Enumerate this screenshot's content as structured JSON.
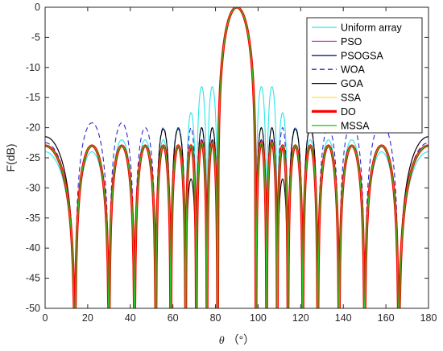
{
  "chart_data": {
    "type": "line",
    "title": "",
    "xlabel_symbol": "θ",
    "xlabel_unit": "（°）",
    "ylabel": "F(dB)",
    "xlim": [
      0,
      180
    ],
    "ylim": [
      -50,
      0
    ],
    "xticks": [
      0,
      20,
      40,
      60,
      80,
      100,
      120,
      140,
      160,
      180
    ],
    "yticks": [
      0,
      -5,
      -10,
      -15,
      -20,
      -25,
      -30,
      -35,
      -40,
      -45,
      -50
    ],
    "grid": false,
    "legend_position": "top-right",
    "main_lobe": {
      "center": 90,
      "peak": 0,
      "null_left": 81,
      "null_right": 99
    },
    "nulls_left": [
      14,
      30,
      42,
      52,
      59,
      66,
      71,
      76,
      81
    ],
    "series": [
      {
        "name": "Uniform array",
        "color": "#2de6e6",
        "dash": "",
        "peaks": [
          -24,
          -24,
          -22,
          -22,
          -22,
          -20,
          -17.5,
          -13.2
        ]
      },
      {
        "name": "PSO",
        "color": "#e040d0",
        "dash": "",
        "peaks": [
          -21.5,
          -23,
          -23,
          -23,
          -23,
          -23,
          -23,
          -22
        ]
      },
      {
        "name": "PSOGSA",
        "color": "#1a1a8c",
        "dash": "",
        "peaks": [
          -23,
          -23,
          -23,
          -23,
          -23,
          -23,
          -23,
          -22
        ]
      },
      {
        "name": "WOA",
        "color": "#2a2ad0",
        "dash": "6,4",
        "peaks": [
          -22.5,
          -19.2,
          -19.2,
          -20,
          -20,
          -20,
          -20,
          -20
        ]
      },
      {
        "name": "GOA",
        "color": "#000000",
        "dash": "",
        "peaks": [
          -21.5,
          -23,
          -23,
          -23,
          -20.2,
          -20.2,
          -28.5,
          -20
        ]
      },
      {
        "name": "SSA",
        "color": "#ffe040",
        "dash": "",
        "peaks": [
          -23,
          -23,
          -23,
          -23,
          -23,
          -23,
          -23,
          -22.5
        ]
      },
      {
        "name": "DO",
        "color": "#ff0000",
        "dash": "",
        "peaks": [
          -23,
          -23,
          -23,
          -23,
          -23,
          -23,
          -23,
          -22.5
        ]
      },
      {
        "name": "MSSA",
        "color": "#22cc22",
        "dash": "",
        "peaks": [
          -23,
          -23,
          -23,
          -23,
          -23,
          -23,
          -23,
          -22.5
        ]
      }
    ]
  }
}
